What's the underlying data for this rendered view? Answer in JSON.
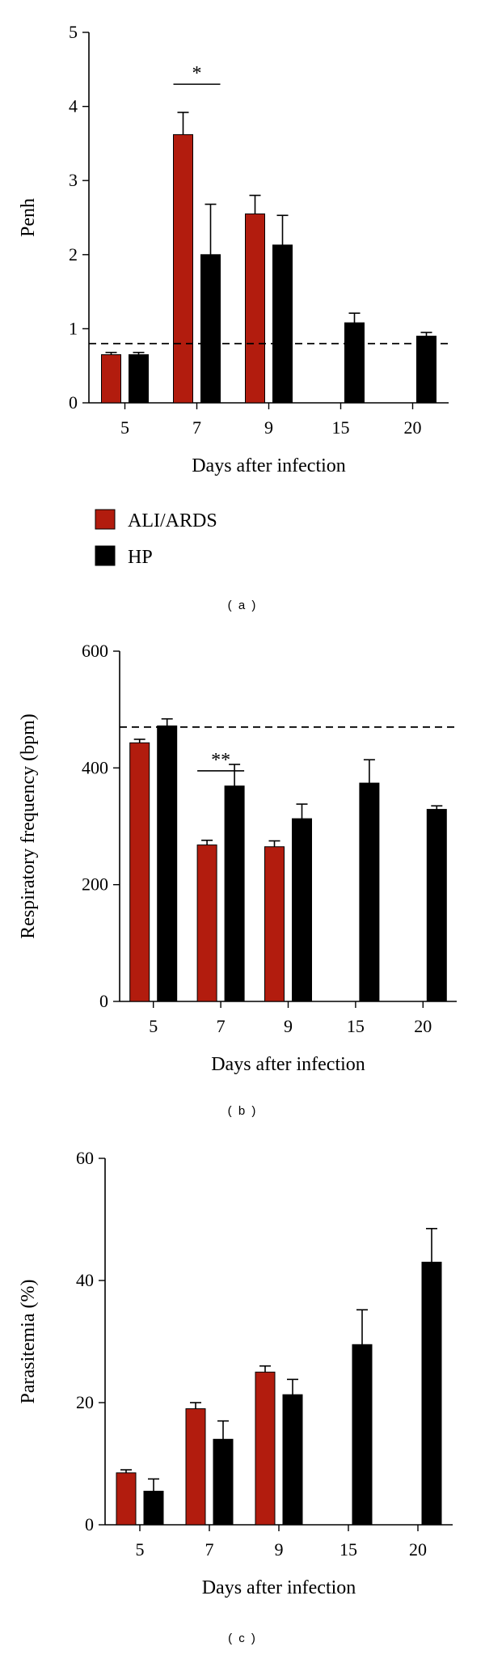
{
  "colors": {
    "ali_ards": "#b21c0e",
    "hp": "#000000"
  },
  "legend": [
    {
      "name": "ALI/ARDS",
      "color": "#b21c0e"
    },
    {
      "name": "HP",
      "color": "#000000"
    }
  ],
  "chart_data": [
    {
      "type": "bar",
      "panel_label": "( a )",
      "xlabel": "Days after infection",
      "ylabel": "Penh",
      "ylim": [
        0,
        5
      ],
      "yticks": [
        0,
        1,
        2,
        3,
        4,
        5
      ],
      "categories": [
        "5",
        "7",
        "9",
        "15",
        "20"
      ],
      "series": [
        {
          "name": "ALI/ARDS",
          "values": [
            0.65,
            3.62,
            2.55,
            null,
            null
          ],
          "errors": [
            0.03,
            0.3,
            0.25,
            null,
            null
          ]
        },
        {
          "name": "HP",
          "values": [
            0.65,
            2.0,
            2.13,
            1.08,
            0.9
          ],
          "errors": [
            0.03,
            0.68,
            0.4,
            0.13,
            0.05
          ]
        }
      ],
      "reference_line": 0.8,
      "significance": [
        {
          "category": "7",
          "label": "*",
          "y": 4.3
        }
      ],
      "grid": false
    },
    {
      "type": "bar",
      "panel_label": "( b )",
      "xlabel": "Days after infection",
      "ylabel": "Respiratory frequency (bpm)",
      "ylim": [
        0,
        600
      ],
      "yticks": [
        0,
        200,
        400,
        600
      ],
      "categories": [
        "5",
        "7",
        "9",
        "15",
        "20"
      ],
      "series": [
        {
          "name": "ALI/ARDS",
          "values": [
            443,
            268,
            265,
            null,
            null
          ],
          "errors": [
            6,
            8,
            10,
            null,
            null
          ]
        },
        {
          "name": "HP",
          "values": [
            472,
            369,
            313,
            374,
            329
          ],
          "errors": [
            12,
            37,
            25,
            40,
            6
          ]
        }
      ],
      "reference_line": 470,
      "significance": [
        {
          "category": "7",
          "label": "**",
          "y": 395
        }
      ],
      "grid": false
    },
    {
      "type": "bar",
      "panel_label": "( c )",
      "xlabel": "Days after infection",
      "ylabel": "Parasitemia (%)",
      "ylim": [
        0,
        60
      ],
      "yticks": [
        0,
        20,
        40,
        60
      ],
      "categories": [
        "5",
        "7",
        "9",
        "15",
        "20"
      ],
      "series": [
        {
          "name": "ALI/ARDS",
          "values": [
            8.5,
            19,
            25,
            null,
            null
          ],
          "errors": [
            0.5,
            1,
            1,
            null,
            null
          ]
        },
        {
          "name": "HP",
          "values": [
            5.5,
            14,
            21.3,
            29.5,
            43
          ],
          "errors": [
            2,
            3,
            2.5,
            5.7,
            5.5
          ]
        }
      ],
      "reference_line": null,
      "significance": [],
      "grid": false
    }
  ]
}
